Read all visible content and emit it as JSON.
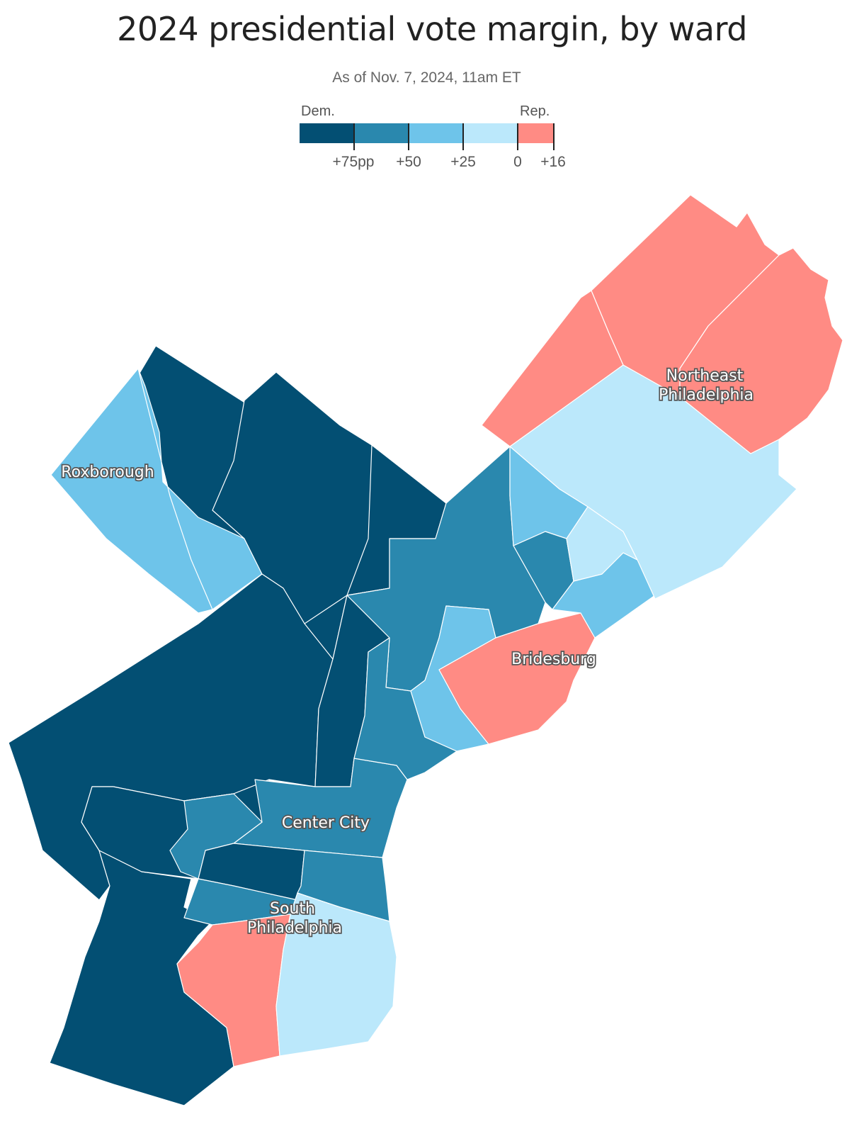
{
  "title": "2024 presidential vote margin, by ward",
  "subtitle": "As of Nov. 7, 2024, 11am ET",
  "legend": {
    "dem_label": "Dem.",
    "rep_label": "Rep.",
    "bins": [
      {
        "range": "Dem. +75pp or more",
        "color": "#034f73"
      },
      {
        "range": "Dem. +50 to +75",
        "color": "#2a88ae"
      },
      {
        "range": "Dem. +25 to +50",
        "color": "#6ec4ea"
      },
      {
        "range": "Dem. 0 to +25",
        "color": "#bbe8fb"
      },
      {
        "range": "Rep. 0 to +16",
        "color": "#ff8b84"
      }
    ],
    "ticks": [
      "+75pp",
      "+50",
      "+25",
      "0",
      "+16"
    ]
  },
  "places": {
    "roxborough": "Roxborough",
    "northeast_line1": "Northeast",
    "northeast_line2": "Philadelphia",
    "bridesburg": "Bridesburg",
    "center_city": "Center City",
    "south_line1": "South",
    "south_line2": "Philadelphia"
  }
}
